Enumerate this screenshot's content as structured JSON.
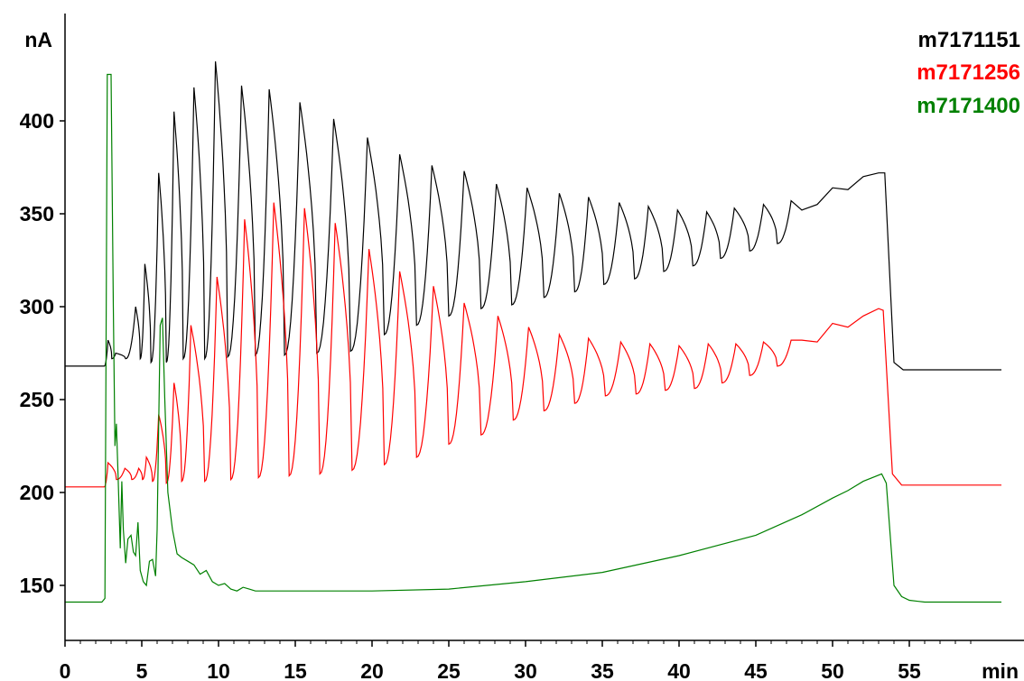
{
  "chart_data": {
    "type": "line",
    "ylabel": "nA",
    "xlabel": "min",
    "xlim": [
      0,
      61
    ],
    "ylim": [
      120,
      430
    ],
    "x_ticks": [
      0,
      5,
      10,
      15,
      20,
      25,
      30,
      35,
      40,
      45,
      50,
      55
    ],
    "y_ticks": [
      150,
      200,
      250,
      300,
      350,
      400
    ],
    "grid": false,
    "legend_position": "top-right",
    "series": [
      {
        "name": "m7171151",
        "color": "#000000",
        "baseline": 268,
        "end_level": 266,
        "peaks": [
          {
            "t": 2.8,
            "h": 282
          },
          {
            "t": 3.3,
            "h": 275
          },
          {
            "t": 4.6,
            "h": 300
          },
          {
            "t": 5.2,
            "h": 323
          },
          {
            "t": 6.1,
            "h": 372
          },
          {
            "t": 7.1,
            "h": 405
          },
          {
            "t": 8.4,
            "h": 418
          },
          {
            "t": 9.8,
            "h": 432
          },
          {
            "t": 11.5,
            "h": 419
          },
          {
            "t": 13.3,
            "h": 417
          },
          {
            "t": 15.3,
            "h": 410
          },
          {
            "t": 17.5,
            "h": 401
          },
          {
            "t": 19.7,
            "h": 391
          },
          {
            "t": 21.8,
            "h": 382
          },
          {
            "t": 23.9,
            "h": 376
          },
          {
            "t": 26.0,
            "h": 373
          },
          {
            "t": 28.1,
            "h": 366
          },
          {
            "t": 30.1,
            "h": 364
          },
          {
            "t": 32.2,
            "h": 361
          },
          {
            "t": 34.1,
            "h": 359
          },
          {
            "t": 36.1,
            "h": 356
          },
          {
            "t": 38.0,
            "h": 354
          },
          {
            "t": 39.9,
            "h": 352
          },
          {
            "t": 41.8,
            "h": 351
          },
          {
            "t": 43.6,
            "h": 353
          },
          {
            "t": 45.5,
            "h": 355
          },
          {
            "t": 47.3,
            "h": 357
          }
        ],
        "valleys": [
          {
            "t": 5.6,
            "v": 270
          },
          {
            "t": 6.6,
            "v": 270
          },
          {
            "t": 7.7,
            "v": 272
          },
          {
            "t": 9.1,
            "v": 272
          },
          {
            "t": 10.6,
            "v": 273
          },
          {
            "t": 12.4,
            "v": 274
          },
          {
            "t": 14.3,
            "v": 274
          },
          {
            "t": 16.4,
            "v": 275
          },
          {
            "t": 18.6,
            "v": 276
          },
          {
            "t": 20.8,
            "v": 285
          },
          {
            "t": 22.9,
            "v": 290
          },
          {
            "t": 25.0,
            "v": 295
          },
          {
            "t": 27.1,
            "v": 299
          },
          {
            "t": 29.1,
            "v": 301
          },
          {
            "t": 31.2,
            "v": 305
          },
          {
            "t": 33.2,
            "v": 308
          },
          {
            "t": 35.1,
            "v": 312
          },
          {
            "t": 37.1,
            "v": 315
          },
          {
            "t": 39.0,
            "v": 319
          },
          {
            "t": 40.9,
            "v": 322
          },
          {
            "t": 42.7,
            "v": 326
          },
          {
            "t": 44.6,
            "v": 330
          },
          {
            "t": 46.4,
            "v": 334
          }
        ],
        "ramp": [
          {
            "t": 48.0,
            "v": 352
          },
          {
            "t": 49.0,
            "v": 355
          },
          {
            "t": 50.0,
            "v": 364
          },
          {
            "t": 51.0,
            "v": 363
          },
          {
            "t": 52.0,
            "v": 370
          },
          {
            "t": 53.0,
            "v": 372
          },
          {
            "t": 53.4,
            "v": 372
          },
          {
            "t": 54.0,
            "v": 270
          },
          {
            "t": 54.6,
            "v": 266
          }
        ]
      },
      {
        "name": "m7171256",
        "color": "#ff0000",
        "baseline": 203,
        "end_level": 204,
        "peaks": [
          {
            "t": 2.8,
            "h": 216
          },
          {
            "t": 3.9,
            "h": 213
          },
          {
            "t": 4.8,
            "h": 213
          },
          {
            "t": 5.3,
            "h": 219
          },
          {
            "t": 6.1,
            "h": 242
          },
          {
            "t": 7.1,
            "h": 259
          },
          {
            "t": 8.2,
            "h": 290
          },
          {
            "t": 9.9,
            "h": 316
          },
          {
            "t": 11.7,
            "h": 347
          },
          {
            "t": 13.6,
            "h": 356
          },
          {
            "t": 15.6,
            "h": 353
          },
          {
            "t": 17.6,
            "h": 345
          },
          {
            "t": 19.8,
            "h": 331
          },
          {
            "t": 21.8,
            "h": 319
          },
          {
            "t": 24.0,
            "h": 311
          },
          {
            "t": 26.0,
            "h": 302
          },
          {
            "t": 28.2,
            "h": 295
          },
          {
            "t": 30.2,
            "h": 289
          },
          {
            "t": 32.2,
            "h": 285
          },
          {
            "t": 34.1,
            "h": 283
          },
          {
            "t": 36.2,
            "h": 281
          },
          {
            "t": 38.1,
            "h": 280
          },
          {
            "t": 40.0,
            "h": 279
          },
          {
            "t": 41.9,
            "h": 280
          },
          {
            "t": 43.7,
            "h": 280
          },
          {
            "t": 45.5,
            "h": 281
          },
          {
            "t": 47.3,
            "h": 282
          }
        ],
        "valleys": [
          {
            "t": 5.7,
            "v": 206
          },
          {
            "t": 6.6,
            "v": 205
          },
          {
            "t": 7.6,
            "v": 206
          },
          {
            "t": 9.1,
            "v": 206
          },
          {
            "t": 10.8,
            "v": 207
          },
          {
            "t": 12.6,
            "v": 208
          },
          {
            "t": 14.6,
            "v": 209
          },
          {
            "t": 16.6,
            "v": 210
          },
          {
            "t": 18.7,
            "v": 212
          },
          {
            "t": 20.8,
            "v": 215
          },
          {
            "t": 22.9,
            "v": 219
          },
          {
            "t": 25.0,
            "v": 226
          },
          {
            "t": 27.1,
            "v": 231
          },
          {
            "t": 29.2,
            "v": 239
          },
          {
            "t": 31.2,
            "v": 244
          },
          {
            "t": 33.2,
            "v": 248
          },
          {
            "t": 35.2,
            "v": 252
          },
          {
            "t": 37.2,
            "v": 253
          },
          {
            "t": 39.1,
            "v": 255
          },
          {
            "t": 41.0,
            "v": 256
          },
          {
            "t": 42.8,
            "v": 259
          },
          {
            "t": 44.6,
            "v": 263
          },
          {
            "t": 46.4,
            "v": 268
          }
        ],
        "ramp": [
          {
            "t": 48.0,
            "v": 282
          },
          {
            "t": 49.0,
            "v": 281
          },
          {
            "t": 50.0,
            "v": 291
          },
          {
            "t": 51.0,
            "v": 289
          },
          {
            "t": 52.0,
            "v": 295
          },
          {
            "t": 53.0,
            "v": 299
          },
          {
            "t": 53.3,
            "v": 298
          },
          {
            "t": 53.9,
            "v": 210
          },
          {
            "t": 54.5,
            "v": 204
          }
        ]
      },
      {
        "name": "m7171400",
        "color": "#008000",
        "points": [
          [
            0,
            141
          ],
          [
            2.4,
            141
          ],
          [
            2.6,
            143
          ],
          [
            2.75,
            425
          ],
          [
            3.0,
            425
          ],
          [
            3.15,
            300
          ],
          [
            3.25,
            225
          ],
          [
            3.35,
            237
          ],
          [
            3.45,
            210
          ],
          [
            3.6,
            170
          ],
          [
            3.7,
            206
          ],
          [
            3.8,
            180
          ],
          [
            3.95,
            162
          ],
          [
            4.1,
            175
          ],
          [
            4.3,
            177
          ],
          [
            4.45,
            168
          ],
          [
            4.6,
            166
          ],
          [
            4.75,
            184
          ],
          [
            4.9,
            158
          ],
          [
            5.1,
            152
          ],
          [
            5.3,
            150
          ],
          [
            5.5,
            163
          ],
          [
            5.7,
            164
          ],
          [
            5.9,
            155
          ],
          [
            6.0,
            180
          ],
          [
            6.2,
            290
          ],
          [
            6.35,
            294
          ],
          [
            6.5,
            250
          ],
          [
            6.7,
            200
          ],
          [
            7.0,
            180
          ],
          [
            7.3,
            167
          ],
          [
            7.6,
            165
          ],
          [
            8.0,
            163
          ],
          [
            8.4,
            161
          ],
          [
            8.8,
            156
          ],
          [
            9.2,
            158
          ],
          [
            9.6,
            152
          ],
          [
            10.0,
            150
          ],
          [
            10.4,
            151
          ],
          [
            10.8,
            148
          ],
          [
            11.2,
            147
          ],
          [
            11.6,
            149
          ],
          [
            12.0,
            148
          ],
          [
            12.4,
            147
          ],
          [
            14.0,
            147
          ],
          [
            20.0,
            147
          ],
          [
            25.0,
            148
          ],
          [
            30.0,
            152
          ],
          [
            35.0,
            157
          ],
          [
            40.0,
            166
          ],
          [
            45.0,
            177
          ],
          [
            48.0,
            188
          ],
          [
            50.0,
            197
          ],
          [
            51.0,
            201
          ],
          [
            52.0,
            206
          ],
          [
            53.2,
            210
          ],
          [
            53.5,
            205
          ],
          [
            54.0,
            150
          ],
          [
            54.5,
            144
          ],
          [
            55.0,
            142
          ],
          [
            56.0,
            141
          ],
          [
            61.0,
            141
          ]
        ]
      }
    ]
  }
}
